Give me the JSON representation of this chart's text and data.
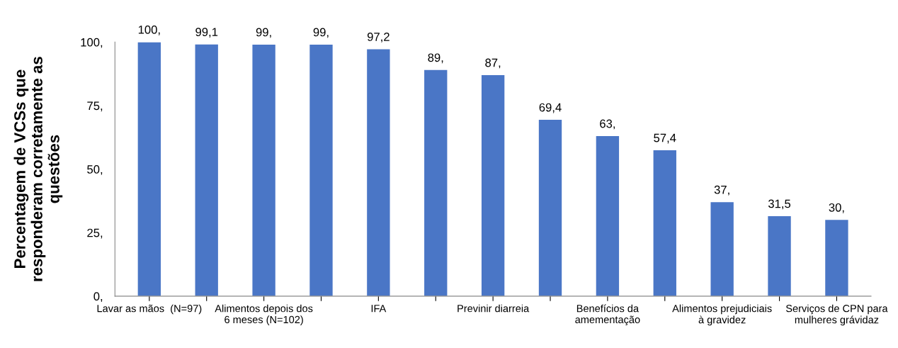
{
  "chart_data": {
    "type": "bar",
    "ylabel": "Percentagem de VCSs que\nresponderam corretamente as\nquestões",
    "categories": [
      "Lavar as mãos  (N=97)",
      null,
      "Alimentos depois dos\n6 meses (N=102)",
      null,
      "IFA",
      null,
      "Previnir diarreia",
      null,
      "Benefícios da\namementação",
      null,
      "Alimentos prejudiciais\nà gravidez",
      null,
      "Serviços de CPN para\nmulheres grávidaz"
    ],
    "values": [
      100,
      99.1,
      99,
      99,
      97.2,
      89,
      87,
      69.4,
      63,
      57.4,
      37,
      31.5,
      30
    ],
    "value_labels": [
      "100,",
      "99,1",
      "99,",
      "99,",
      "97,2",
      "89,",
      "87,",
      "69,4",
      "63,",
      "57,4",
      "37,",
      "31,5",
      "30,"
    ],
    "color": "#4a76c6",
    "ylim": [
      0,
      100
    ],
    "yticks": [
      {
        "value": 0,
        "label": "0,"
      },
      {
        "value": 25,
        "label": "25,"
      },
      {
        "value": 50,
        "label": "50,"
      },
      {
        "value": 75,
        "label": "75,"
      },
      {
        "value": 100,
        "label": "100,"
      }
    ],
    "grid": false
  }
}
